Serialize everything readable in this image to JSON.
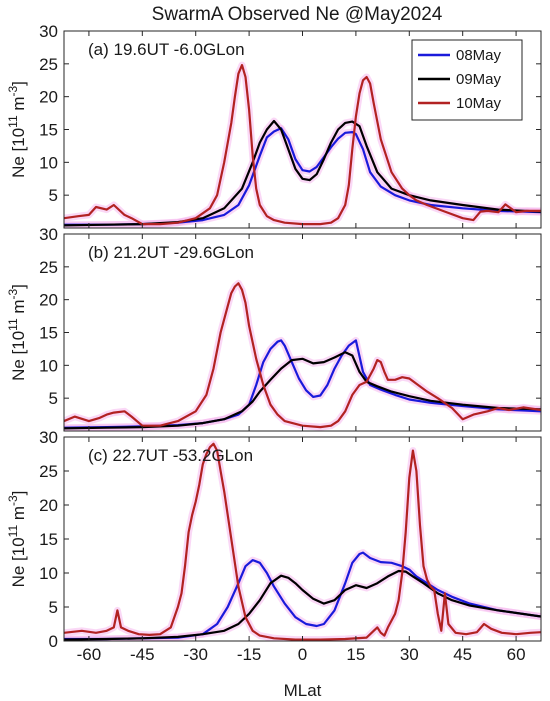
{
  "title": "SwarmA Observed Ne @May2024",
  "colors": {
    "08May": "#1a1adb",
    "09May": "#000000",
    "10May": "#b22222",
    "glow": "#f5b8ee"
  },
  "chart_data": [
    {
      "type": "line",
      "panel_label": "(a) 19.6UT -6.0GLon",
      "xlabel": "",
      "ylabel": "Ne [10^11 m^-3]",
      "xlim": [
        -67,
        67
      ],
      "ylim": [
        0,
        30
      ],
      "yticks": [
        5,
        10,
        15,
        20,
        25,
        30
      ],
      "legend": {
        "position": "top-right",
        "entries": [
          "08May",
          "09May",
          "10May"
        ]
      },
      "series": [
        {
          "name": "08May",
          "x": [
            -67,
            -55,
            -45,
            -35,
            -28,
            -22,
            -18,
            -15,
            -12,
            -10,
            -8,
            -6,
            -4,
            -2,
            0,
            2,
            4,
            6,
            8,
            10,
            12,
            14,
            15,
            17,
            19,
            22,
            26,
            30,
            36,
            45,
            55,
            67
          ],
          "y": [
            0.5,
            0.5,
            0.6,
            0.8,
            1.2,
            2.0,
            3.5,
            6.5,
            11.0,
            13.8,
            14.7,
            15.2,
            13.5,
            10.5,
            8.8,
            8.6,
            9.3,
            10.8,
            12.3,
            13.6,
            14.5,
            14.6,
            14.3,
            12.0,
            8.5,
            6.3,
            5.0,
            4.2,
            3.5,
            3.0,
            2.6,
            2.4
          ]
        },
        {
          "name": "09May",
          "x": [
            -67,
            -55,
            -45,
            -35,
            -28,
            -22,
            -17,
            -14,
            -12,
            -10,
            -8,
            -6,
            -4,
            -2,
            0,
            2,
            4,
            6,
            8,
            10,
            12,
            14,
            16,
            18,
            21,
            25,
            30,
            36,
            45,
            55,
            67
          ],
          "y": [
            0.4,
            0.5,
            0.6,
            0.9,
            1.5,
            3.0,
            6.0,
            10.0,
            13.0,
            15.0,
            16.3,
            15.0,
            12.0,
            9.0,
            7.5,
            7.3,
            8.2,
            10.5,
            13.0,
            15.0,
            16.0,
            16.2,
            15.5,
            12.5,
            8.5,
            6.0,
            5.0,
            4.2,
            3.5,
            2.8,
            2.5
          ]
        },
        {
          "name": "10May",
          "x": [
            -67,
            -63,
            -60,
            -58,
            -55,
            -53,
            -50,
            -48,
            -45,
            -40,
            -35,
            -30,
            -26,
            -24,
            -22,
            -20,
            -19,
            -18,
            -17,
            -16,
            -15,
            -14,
            -13,
            -12,
            -10,
            -8,
            -5,
            0,
            5,
            8,
            10,
            12,
            13,
            14,
            15,
            16,
            17,
            18,
            19,
            20,
            22,
            25,
            28,
            30,
            32,
            35,
            40,
            45,
            48,
            50,
            52,
            55,
            57,
            60,
            63,
            67
          ],
          "y": [
            1.5,
            1.8,
            2.0,
            3.2,
            2.8,
            3.5,
            2.0,
            1.5,
            0.6,
            0.6,
            0.8,
            1.5,
            3.0,
            5.0,
            10.0,
            16.0,
            20.0,
            23.5,
            24.8,
            23.0,
            18.0,
            11.0,
            6.0,
            3.5,
            1.8,
            1.2,
            0.8,
            0.6,
            0.6,
            0.8,
            1.5,
            3.5,
            6.5,
            12.0,
            17.0,
            20.5,
            22.5,
            23.0,
            22.0,
            19.0,
            13.5,
            8.5,
            6.0,
            5.0,
            4.2,
            3.5,
            2.5,
            1.5,
            1.2,
            2.5,
            2.6,
            2.4,
            3.6,
            2.4,
            2.6,
            2.6
          ]
        }
      ]
    },
    {
      "type": "line",
      "panel_label": "(b) 21.2UT -29.6GLon",
      "xlabel": "",
      "ylabel": "Ne [10^11 m^-3]",
      "xlim": [
        -67,
        67
      ],
      "ylim": [
        0,
        30
      ],
      "yticks": [
        5,
        10,
        15,
        20,
        25,
        30
      ],
      "series": [
        {
          "name": "08May",
          "x": [
            -67,
            -55,
            -45,
            -35,
            -28,
            -22,
            -18,
            -15,
            -13,
            -11,
            -9,
            -7,
            -6,
            -5,
            -3,
            -1,
            1,
            3,
            5,
            7,
            9,
            11,
            13,
            15,
            17,
            19,
            22,
            26,
            30,
            36,
            45,
            55,
            67
          ],
          "y": [
            0.5,
            0.6,
            0.7,
            0.9,
            1.2,
            1.8,
            2.5,
            4.0,
            7.0,
            10.5,
            12.5,
            13.6,
            13.8,
            13.0,
            10.5,
            8.0,
            6.2,
            5.2,
            5.4,
            7.0,
            9.5,
            11.5,
            13.0,
            13.8,
            9.0,
            7.0,
            6.3,
            5.5,
            4.8,
            4.3,
            3.8,
            3.3,
            3.0
          ]
        },
        {
          "name": "09May",
          "x": [
            -67,
            -55,
            -45,
            -35,
            -28,
            -22,
            -17,
            -14,
            -12,
            -9,
            -6,
            -3,
            0,
            3,
            6,
            9,
            12,
            14,
            16,
            18,
            21,
            25,
            30,
            36,
            45,
            55,
            67
          ],
          "y": [
            0.4,
            0.5,
            0.6,
            0.8,
            1.2,
            1.8,
            3.0,
            4.5,
            6.0,
            7.8,
            9.5,
            10.8,
            11.0,
            10.3,
            10.5,
            11.2,
            12.0,
            11.5,
            9.0,
            7.5,
            6.8,
            6.0,
            5.3,
            4.6,
            4.0,
            3.5,
            3.3
          ]
        },
        {
          "name": "10May",
          "x": [
            -67,
            -64,
            -60,
            -57,
            -55,
            -53,
            -50,
            -48,
            -45,
            -40,
            -35,
            -30,
            -27,
            -25,
            -23,
            -21,
            -20,
            -19,
            -18,
            -17,
            -16,
            -15,
            -13,
            -11,
            -9,
            -7,
            -5,
            0,
            5,
            8,
            10,
            12,
            14,
            16,
            18,
            20,
            21,
            22,
            23,
            24,
            26,
            28,
            30,
            32,
            35,
            38,
            42,
            45,
            48,
            52,
            55,
            58,
            62,
            67
          ],
          "y": [
            1.5,
            2.2,
            1.5,
            2.0,
            2.5,
            2.8,
            3.0,
            2.2,
            0.8,
            0.8,
            1.5,
            3.0,
            5.5,
            9.5,
            15.0,
            19.0,
            21.0,
            22.0,
            22.5,
            21.5,
            19.5,
            16.0,
            11.0,
            7.0,
            4.0,
            2.5,
            1.5,
            0.8,
            0.6,
            0.8,
            1.5,
            3.0,
            5.5,
            7.0,
            7.5,
            9.5,
            10.8,
            10.5,
            9.0,
            7.8,
            7.8,
            8.2,
            8.0,
            7.2,
            6.0,
            5.0,
            3.5,
            1.8,
            2.5,
            3.0,
            3.5,
            3.2,
            3.6,
            3.2
          ]
        }
      ]
    },
    {
      "type": "line",
      "panel_label": "(c) 22.7UT -53.2GLon",
      "xlabel": "MLat",
      "ylabel": "Ne [10^11 m^-3]",
      "xlim": [
        -67,
        67
      ],
      "ylim": [
        0,
        30
      ],
      "yticks": [
        0,
        5,
        10,
        15,
        20,
        25,
        30
      ],
      "xticks": [
        -60,
        -45,
        -30,
        -15,
        0,
        15,
        30,
        45,
        60
      ],
      "series": [
        {
          "name": "08May",
          "x": [
            -67,
            -55,
            -45,
            -35,
            -28,
            -24,
            -21,
            -18,
            -16,
            -14,
            -12,
            -10,
            -8,
            -5,
            -2,
            1,
            4,
            6,
            9,
            12,
            14,
            16,
            17,
            19,
            22,
            25,
            28,
            30,
            32,
            35,
            38,
            42,
            47,
            55,
            67
          ],
          "y": [
            0.3,
            0.3,
            0.4,
            0.5,
            1.0,
            2.5,
            5.0,
            8.5,
            11.0,
            11.9,
            11.5,
            10.0,
            8.0,
            5.5,
            3.5,
            2.5,
            2.2,
            2.5,
            4.5,
            8.5,
            11.5,
            12.8,
            13.0,
            12.2,
            11.6,
            11.5,
            11.0,
            10.5,
            9.5,
            8.5,
            7.5,
            6.5,
            5.5,
            4.5,
            3.6
          ]
        },
        {
          "name": "09May",
          "x": [
            -67,
            -55,
            -45,
            -35,
            -28,
            -22,
            -18,
            -15,
            -12,
            -9,
            -6,
            -4,
            -2,
            0,
            3,
            6,
            9,
            12,
            15,
            18,
            21,
            24,
            27,
            29,
            31,
            34,
            38,
            42,
            47,
            55,
            67
          ],
          "y": [
            0.2,
            0.3,
            0.4,
            0.6,
            1.0,
            1.5,
            2.5,
            4.0,
            6.0,
            8.5,
            9.6,
            9.3,
            8.5,
            7.5,
            6.2,
            5.5,
            6.0,
            7.5,
            8.2,
            7.8,
            8.5,
            9.5,
            10.3,
            10.2,
            9.5,
            8.5,
            7.0,
            6.0,
            5.2,
            4.5,
            3.6
          ]
        },
        {
          "name": "10May",
          "x": [
            -67,
            -62,
            -58,
            -55,
            -53,
            -52,
            -51,
            -49,
            -46,
            -43,
            -40,
            -37,
            -35,
            -34,
            -33,
            -32,
            -31,
            -30,
            -29,
            -28,
            -27,
            -26,
            -25,
            -24,
            -23,
            -22,
            -20,
            -18,
            -16,
            -14,
            -12,
            -8,
            -2,
            5,
            12,
            18,
            20,
            21,
            22,
            23,
            24,
            25,
            26,
            27,
            28,
            29,
            30,
            31,
            32,
            33,
            34,
            35,
            36,
            37,
            38,
            39,
            40,
            41,
            43,
            46,
            49,
            51,
            53,
            56,
            60,
            64,
            67
          ],
          "y": [
            1.2,
            1.5,
            1.2,
            1.5,
            2.0,
            4.5,
            2.0,
            1.5,
            1.0,
            0.9,
            1.0,
            2.0,
            5.0,
            7.0,
            11.0,
            16.0,
            18.5,
            20.5,
            23.0,
            26.0,
            27.5,
            28.5,
            29.0,
            28.0,
            25.0,
            22.0,
            15.0,
            8.0,
            3.5,
            1.5,
            0.8,
            0.4,
            0.2,
            0.2,
            0.3,
            0.5,
            1.5,
            2.0,
            1.2,
            0.8,
            2.0,
            3.0,
            4.0,
            6.0,
            10.0,
            16.0,
            24.0,
            28.0,
            25.0,
            17.0,
            11.0,
            9.0,
            8.0,
            7.5,
            4.0,
            1.5,
            7.0,
            2.5,
            1.2,
            1.0,
            1.3,
            2.5,
            1.8,
            1.2,
            1.0,
            1.2,
            1.3
          ]
        }
      ]
    }
  ]
}
